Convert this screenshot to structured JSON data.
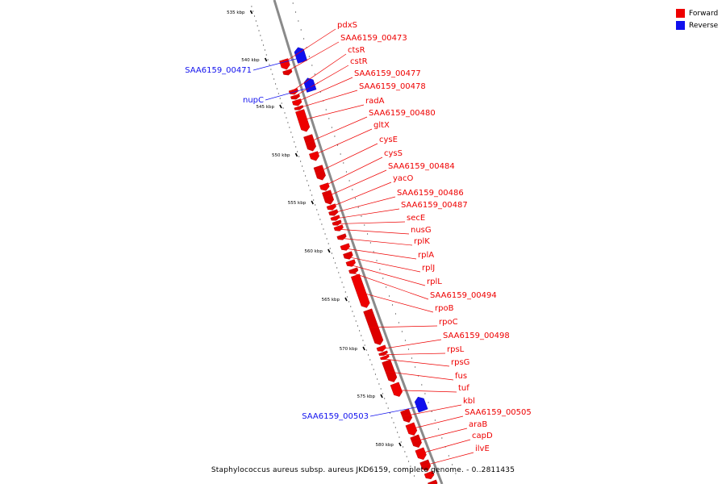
{
  "legend": {
    "forward_label": "Forward",
    "reverse_label": "Reverse",
    "forward_color": "#ee0000",
    "reverse_color": "#1010ee"
  },
  "caption": "Staphylococcus aureus subsp. aureus JKD6159, complete genome. - 0..2811435",
  "ruler_ticks": [
    {
      "kbp": 535,
      "label": "535 kbp"
    },
    {
      "kbp": 540,
      "label": "540 kbp"
    },
    {
      "kbp": 545,
      "label": "545 kbp"
    },
    {
      "kbp": 550,
      "label": "550 kbp"
    },
    {
      "kbp": 555,
      "label": "555 kbp"
    },
    {
      "kbp": 560,
      "label": "560 kbp"
    },
    {
      "kbp": 565,
      "label": "565 kbp"
    },
    {
      "kbp": 570,
      "label": "570 kbp"
    },
    {
      "kbp": 575,
      "label": "575 kbp"
    },
    {
      "kbp": 580,
      "label": "580 kbp"
    }
  ],
  "genes": [
    {
      "name": "pdxS",
      "strand": "forward"
    },
    {
      "name": "SAA6159_00473",
      "strand": "forward"
    },
    {
      "name": "ctsR",
      "strand": "forward"
    },
    {
      "name": "cstR",
      "strand": "forward"
    },
    {
      "name": "SAA6159_00477",
      "strand": "forward"
    },
    {
      "name": "SAA6159_00478",
      "strand": "forward"
    },
    {
      "name": "radA",
      "strand": "forward"
    },
    {
      "name": "SAA6159_00480",
      "strand": "forward"
    },
    {
      "name": "gltX",
      "strand": "forward"
    },
    {
      "name": "cysE",
      "strand": "forward"
    },
    {
      "name": "cysS",
      "strand": "forward"
    },
    {
      "name": "SAA6159_00484",
      "strand": "forward"
    },
    {
      "name": "yacO",
      "strand": "forward"
    },
    {
      "name": "SAA6159_00486",
      "strand": "forward"
    },
    {
      "name": "SAA6159_00487",
      "strand": "forward"
    },
    {
      "name": "secE",
      "strand": "forward"
    },
    {
      "name": "nusG",
      "strand": "forward"
    },
    {
      "name": "rplK",
      "strand": "forward"
    },
    {
      "name": "rplA",
      "strand": "forward"
    },
    {
      "name": "rplJ",
      "strand": "forward"
    },
    {
      "name": "rplL",
      "strand": "forward"
    },
    {
      "name": "SAA6159_00494",
      "strand": "forward"
    },
    {
      "name": "rpoB",
      "strand": "forward"
    },
    {
      "name": "rpoC",
      "strand": "forward"
    },
    {
      "name": "SAA6159_00498",
      "strand": "forward"
    },
    {
      "name": "rpsL",
      "strand": "forward"
    },
    {
      "name": "rpsG",
      "strand": "forward"
    },
    {
      "name": "fus",
      "strand": "forward"
    },
    {
      "name": "tuf",
      "strand": "forward"
    },
    {
      "name": "kbl",
      "strand": "forward"
    },
    {
      "name": "SAA6159_00505",
      "strand": "forward"
    },
    {
      "name": "araB",
      "strand": "forward"
    },
    {
      "name": "capD",
      "strand": "forward"
    },
    {
      "name": "ilvE",
      "strand": "forward"
    },
    {
      "name": "SAA6159_00471",
      "strand": "reverse"
    },
    {
      "name": "nupC",
      "strand": "reverse"
    },
    {
      "name": "SAA6159_00503",
      "strand": "reverse"
    }
  ]
}
